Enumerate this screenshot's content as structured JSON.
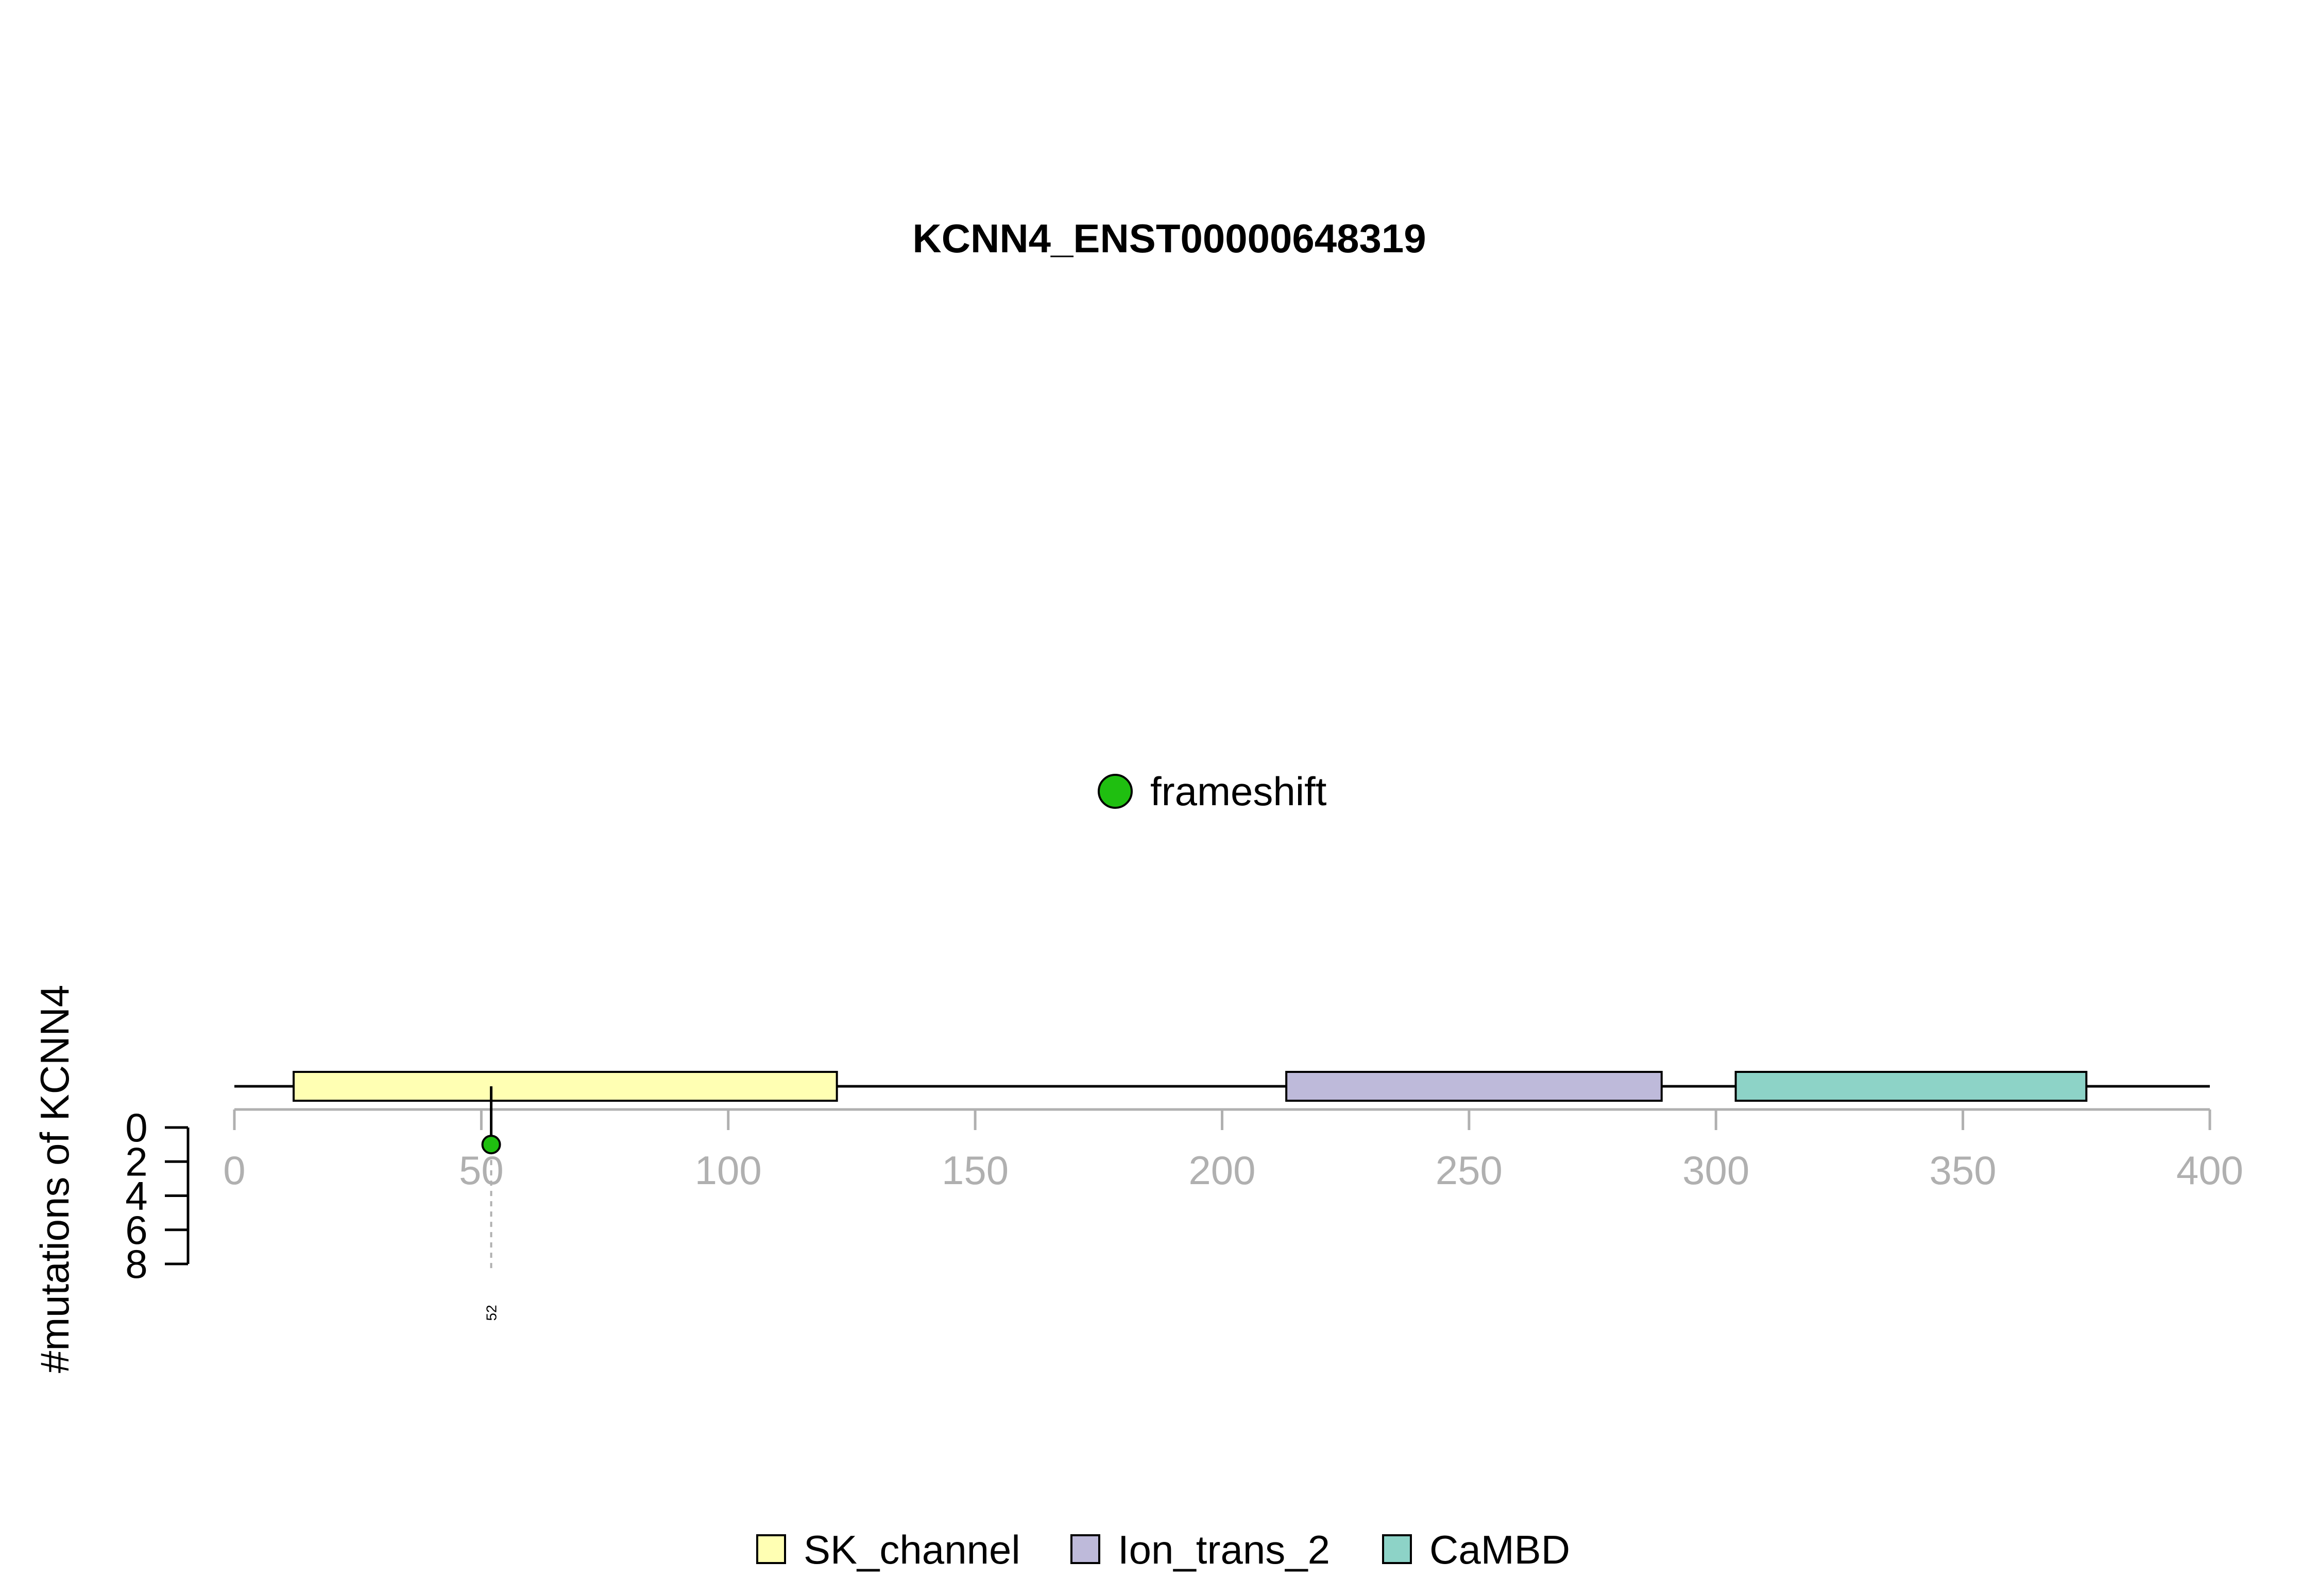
{
  "chart_data": {
    "type": "lollipop",
    "title": "KCNN4_ENST00000648319",
    "ylabel": "#mutations of KCNN4",
    "x_axis": {
      "range": [
        0,
        400
      ],
      "ticks": [
        0,
        50,
        100,
        150,
        200,
        250,
        300,
        350,
        400
      ]
    },
    "y_axis": {
      "range": [
        0,
        8
      ],
      "ticks": [
        0,
        2,
        4,
        6,
        8
      ],
      "inverted": true
    },
    "protein_length": 400,
    "domains": [
      {
        "name": "SK_channel",
        "start": 12,
        "end": 122,
        "color": "#FFFFB3"
      },
      {
        "name": "Ion_trans_2",
        "start": 213,
        "end": 289,
        "color": "#BEBADA"
      },
      {
        "name": "CaMBD",
        "start": 304,
        "end": 375,
        "color": "#8DD3C7"
      }
    ],
    "mutations": [
      {
        "position": 52,
        "count": 1,
        "type": "frameshift",
        "label": "52"
      }
    ],
    "mutation_types": [
      {
        "name": "frameshift",
        "color": "#1FBF10"
      }
    ],
    "legend_domains": [
      "SK_channel",
      "Ion_trans_2",
      "CaMBD"
    ]
  }
}
